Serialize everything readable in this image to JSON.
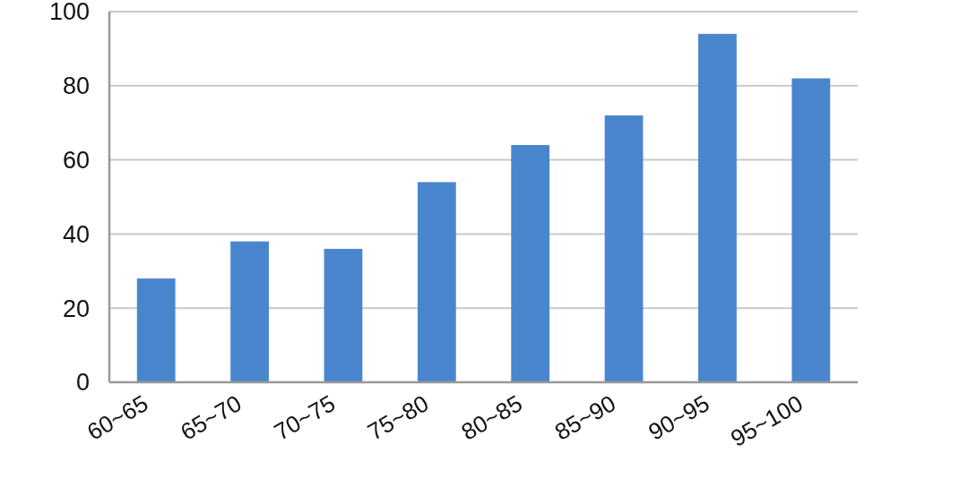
{
  "chart_data": {
    "type": "bar",
    "categories": [
      "60~65",
      "65~70",
      "70~75",
      "75~80",
      "80~85",
      "85~90",
      "90~95",
      "95~100"
    ],
    "values": [
      28,
      38,
      36,
      54,
      64,
      72,
      94,
      82
    ],
    "color": "#4a86cd",
    "ylim": [
      0,
      100
    ],
    "yticks": [
      0,
      20,
      40,
      60,
      80,
      100
    ],
    "grid": "y"
  }
}
